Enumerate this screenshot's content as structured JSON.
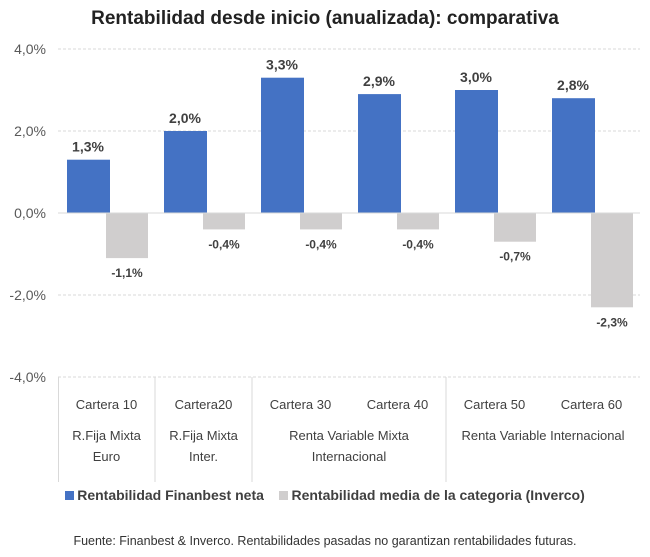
{
  "chart_data": {
    "type": "bar",
    "title": "Rentabilidad desde inicio (anualizada): comparativa",
    "categories": [
      "Cartera 10",
      "Cartera20",
      "Cartera 30",
      "Cartera 40",
      "Cartera 50",
      "Cartera 60"
    ],
    "groups": [
      {
        "label": [
          "R.Fija Mixta",
          "Euro"
        ],
        "span": 1
      },
      {
        "label": [
          "R.Fija Mixta",
          "Inter."
        ],
        "span": 1
      },
      {
        "label": [
          "Renta Variable Mixta",
          "Internacional"
        ],
        "span": 2
      },
      {
        "label": [
          "Renta Variable Internacional"
        ],
        "span": 2
      }
    ],
    "series": [
      {
        "name": "Rentabilidad Finanbest neta",
        "color": "#4472C4",
        "values": [
          1.3,
          2.0,
          3.3,
          2.9,
          3.0,
          2.8
        ],
        "labels": [
          "1,3%",
          "2,0%",
          "3,3%",
          "2,9%",
          "3,0%",
          "2,8%"
        ]
      },
      {
        "name": "Rentabilidad media de la categoria (Inverco)",
        "color": "#D0CECE",
        "values": [
          -1.1,
          -0.4,
          -0.4,
          -0.4,
          -0.7,
          -2.3
        ],
        "labels": [
          "-1,1%",
          "-0,4%",
          "-0,4%",
          "-0,4%",
          "-0,7%",
          "-2,3%"
        ]
      }
    ],
    "yticks": [
      4,
      2,
      0,
      -2,
      -4
    ],
    "ytick_labels": [
      "4,0%",
      "2,0%",
      "0,0%",
      "-2,0%",
      "-4,0%"
    ],
    "ylim": [
      -4,
      4
    ],
    "grid": true,
    "legend_position": "bottom"
  },
  "source": "Fuente: Finanbest & Inverco. Rentabilidades pasadas no garantizan rentabilidades futuras."
}
